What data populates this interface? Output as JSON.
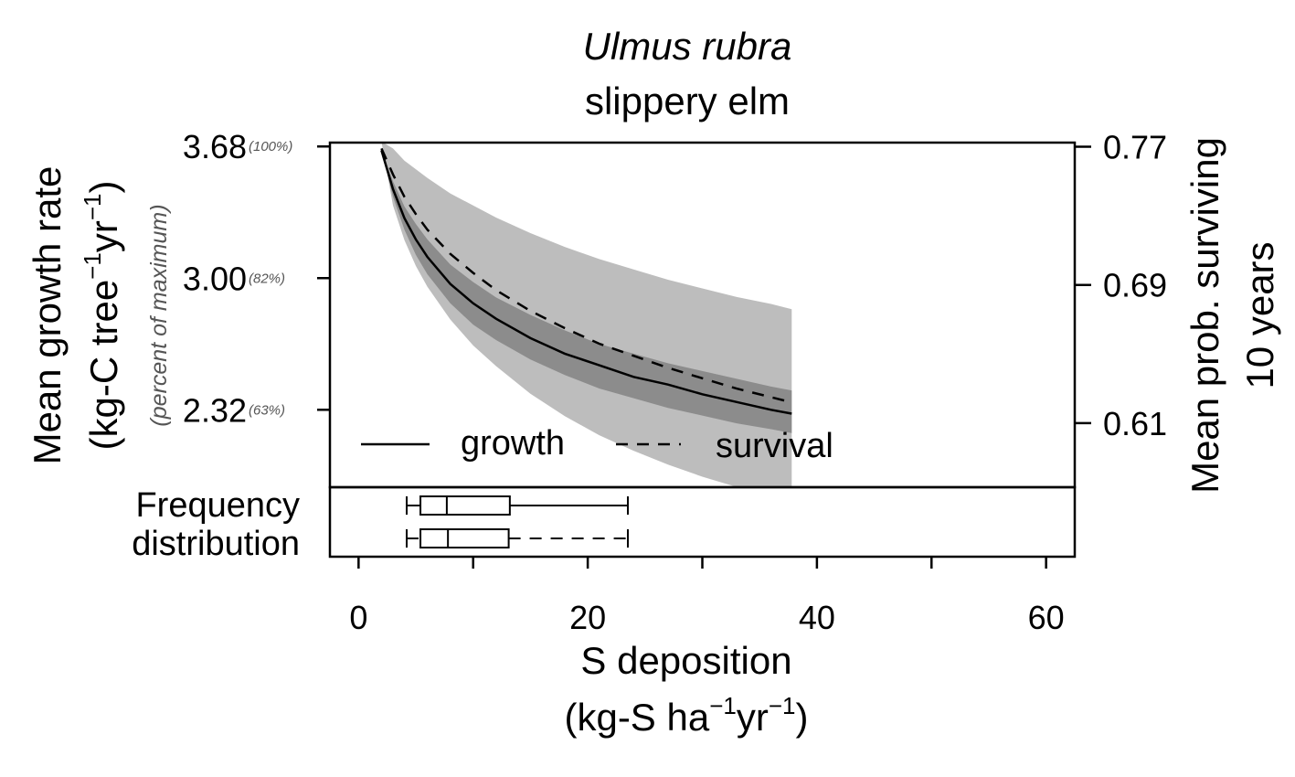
{
  "chart_data": {
    "type": "line",
    "title": "Ulmus rubra",
    "subtitle": "slippery elm",
    "xlabel": "S deposition",
    "xlabel_units": {
      "base": "(kg-S ha",
      "sup1": "−1",
      "mid": "yr",
      "sup2": "−1",
      "end": ")"
    },
    "ylabel_left": "Mean growth rate",
    "ylabel_left_units": {
      "base": "(kg-C tree",
      "sup1": "−1",
      "mid": "yr",
      "sup2": "−1",
      "end": ")"
    },
    "ylabel_left_secondary": "(percent of maximum)",
    "ylabel_right": "Mean prob. surviving",
    "ylabel_right_line2": "10 years",
    "xlim": [
      -2.5,
      62.5
    ],
    "x_ticks": [
      {
        "value": 0,
        "label": "0"
      },
      {
        "value": 10,
        "label": ""
      },
      {
        "value": 20,
        "label": "20"
      },
      {
        "value": 30,
        "label": ""
      },
      {
        "value": 40,
        "label": "40"
      },
      {
        "value": 50,
        "label": ""
      },
      {
        "value": 60,
        "label": "60"
      }
    ],
    "ylim_left": [
      1.92,
      3.7
    ],
    "y_ticks_left": [
      {
        "value": 3.68,
        "label": "3.68",
        "pct": "(100%)"
      },
      {
        "value": 3.0,
        "label": "3.00",
        "pct": "(82%)"
      },
      {
        "value": 2.32,
        "label": "2.32",
        "pct": "(63%)"
      }
    ],
    "ylim_right": [
      0.5729,
      0.7724
    ],
    "y_ticks_right": [
      {
        "value": 0.77,
        "label": "0.77"
      },
      {
        "value": 0.69,
        "label": "0.69"
      },
      {
        "value": 0.61,
        "label": "0.61"
      }
    ],
    "legend": {
      "position": "bottom",
      "entries": [
        {
          "label": "growth",
          "linestyle": "solid"
        },
        {
          "label": "survival",
          "linestyle": "dashed"
        }
      ]
    },
    "series": [
      {
        "name": "growth",
        "axis": "left",
        "linestyle": "solid",
        "x": [
          2.0,
          3,
          4,
          5,
          6,
          8,
          10,
          12,
          15,
          18,
          21,
          24,
          27,
          30,
          33,
          36,
          37.8
        ],
        "y": [
          3.66,
          3.46,
          3.31,
          3.2,
          3.11,
          2.97,
          2.87,
          2.79,
          2.69,
          2.61,
          2.55,
          2.49,
          2.45,
          2.4,
          2.36,
          2.32,
          2.3
        ],
        "ci_inner_low": [
          3.66,
          3.42,
          3.25,
          3.12,
          3.02,
          2.87,
          2.76,
          2.68,
          2.58,
          2.5,
          2.43,
          2.38,
          2.33,
          2.29,
          2.25,
          2.22,
          2.2
        ],
        "ci_inner_high": [
          3.66,
          3.5,
          3.37,
          3.28,
          3.2,
          3.07,
          2.98,
          2.9,
          2.81,
          2.73,
          2.66,
          2.61,
          2.56,
          2.52,
          2.48,
          2.44,
          2.42
        ]
      },
      {
        "name": "survival",
        "axis": "right",
        "linestyle": "dashed",
        "x": [
          2.0,
          3,
          4,
          5,
          6,
          8,
          10,
          12,
          15,
          18,
          21,
          24,
          27,
          30,
          33,
          36,
          37.8
        ],
        "y": [
          0.769,
          0.754,
          0.741,
          0.731,
          0.722,
          0.708,
          0.697,
          0.687,
          0.675,
          0.665,
          0.656,
          0.649,
          0.642,
          0.636,
          0.63,
          0.625,
          0.622
        ],
        "ci_outer_low": [
          0.773,
          0.736,
          0.716,
          0.701,
          0.689,
          0.67,
          0.655,
          0.643,
          0.627,
          0.614,
          0.603,
          0.594,
          0.586,
          0.579,
          0.573,
          0.573,
          0.573
        ],
        "ci_outer_high": [
          0.773,
          0.769,
          0.762,
          0.757,
          0.752,
          0.743,
          0.736,
          0.729,
          0.72,
          0.712,
          0.705,
          0.699,
          0.693,
          0.688,
          0.683,
          0.679,
          0.676
        ]
      }
    ],
    "frequency_distribution": {
      "label_line1": "Frequency",
      "label_line2": "distribution",
      "boxplots": [
        {
          "series": "growth",
          "linestyle": "solid",
          "min": 4.2,
          "q1": 5.4,
          "median": 7.7,
          "q3": 13.2,
          "max": 23.5
        },
        {
          "series": "survival",
          "linestyle": "dashed",
          "min": 4.2,
          "q1": 5.4,
          "median": 7.8,
          "q3": 13.1,
          "max": 23.5
        }
      ]
    },
    "colors": {
      "inner_band": "#8c8c8c",
      "outer_band": "#bdbdbd",
      "line": "#000000"
    }
  }
}
